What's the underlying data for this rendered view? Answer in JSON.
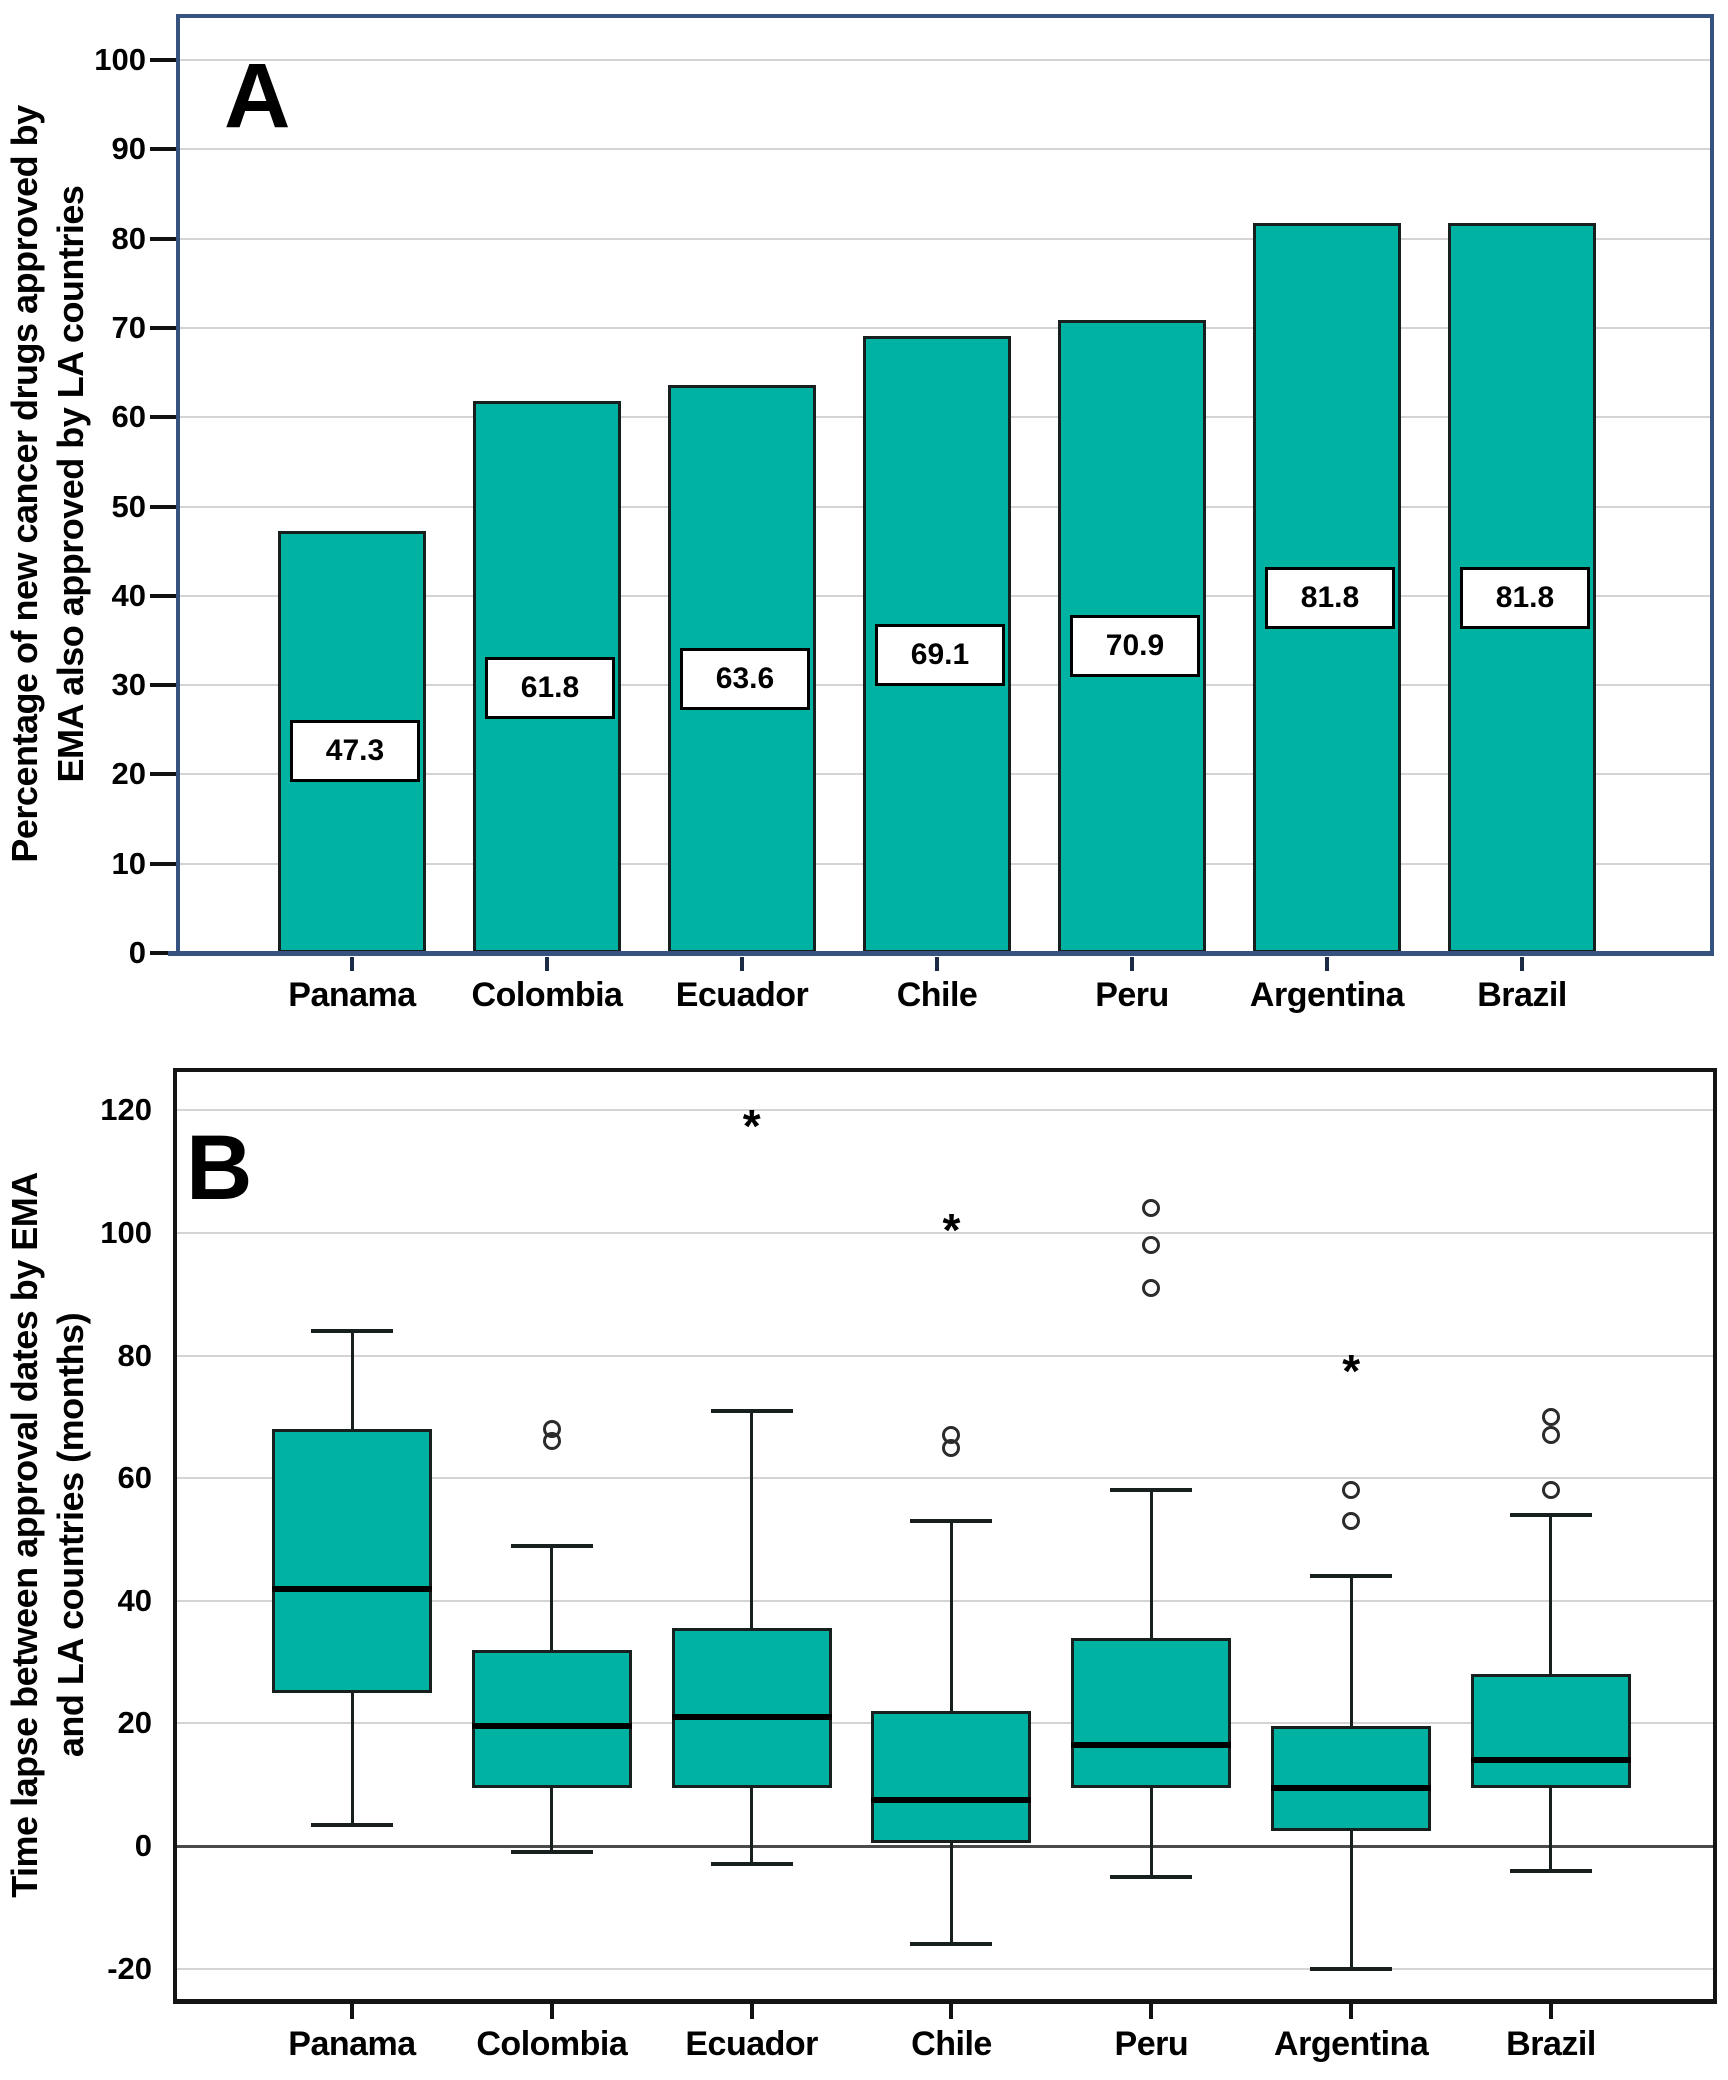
{
  "colors": {
    "teal": "#00b2a2",
    "bar_stroke": "#17201f",
    "panel_a_border": "#35537e",
    "panel_b_border": "#141414",
    "grid": "#d4d4d4",
    "zero_line": "#4a4a4a",
    "tick": "#111111",
    "median": "#000000",
    "outlier_stroke": "#2b2b2b"
  },
  "countries": [
    "Panama",
    "Colombia",
    "Ecuador",
    "Chile",
    "Peru",
    "Argentina",
    "Brazil"
  ],
  "panel_a": {
    "letter": "A",
    "ylabel_line1": "Percentage of new cancer drugs approved by",
    "ylabel_line2": "EMA also approved by LA countries",
    "yticks": [
      0,
      10,
      20,
      30,
      40,
      50,
      60,
      70,
      80,
      90,
      100
    ]
  },
  "panel_b": {
    "letter": "B",
    "ylabel_line1": "Time lapse between approval dates by EMA",
    "ylabel_line2": "and LA countries (months)",
    "yticks": [
      -20,
      0,
      20,
      40,
      60,
      80,
      100,
      120
    ]
  },
  "chart_data": [
    {
      "type": "bar",
      "panel": "A",
      "title": "A",
      "ylabel": "Percentage of new cancer drugs approved by EMA also approved by LA countries",
      "xlabel": "",
      "categories": [
        "Panama",
        "Colombia",
        "Ecuador",
        "Chile",
        "Peru",
        "Argentina",
        "Brazil"
      ],
      "values": [
        47.3,
        61.8,
        63.6,
        69.1,
        70.9,
        81.8,
        81.8
      ],
      "bar_labels": [
        "47.3",
        "61.8",
        "63.6",
        "69.1",
        "70.9",
        "81.8",
        "81.8"
      ],
      "label_center_y": [
        23,
        30,
        31,
        33.7,
        34.7,
        40.1,
        40.1
      ],
      "ylim": [
        0,
        105.2
      ],
      "yticks": [
        0,
        10,
        20,
        30,
        40,
        50,
        60,
        70,
        80,
        90,
        100
      ],
      "grid": true,
      "legend": "none"
    },
    {
      "type": "box",
      "panel": "B",
      "title": "B",
      "ylabel": "Time lapse between approval dates by EMA and LA countries (months)",
      "xlabel": "",
      "categories": [
        "Panama",
        "Colombia",
        "Ecuador",
        "Chile",
        "Peru",
        "Argentina",
        "Brazil"
      ],
      "ylim": [
        -25.6,
        126.9
      ],
      "yticks": [
        -20,
        0,
        20,
        40,
        60,
        80,
        100,
        120
      ],
      "grid": true,
      "series": [
        {
          "name": "Panama",
          "whisker_low": 3.5,
          "q1": 25,
          "median": 42,
          "q3": 68,
          "whisker_high": 84,
          "outliers_circle": [],
          "outliers_star": []
        },
        {
          "name": "Colombia",
          "whisker_low": -1,
          "q1": 9.5,
          "median": 19.5,
          "q3": 32,
          "whisker_high": 49,
          "outliers_circle": [
            66,
            68
          ],
          "outliers_star": []
        },
        {
          "name": "Ecuador",
          "whisker_low": -3,
          "q1": 9.5,
          "median": 21,
          "q3": 35.5,
          "whisker_high": 71,
          "outliers_circle": [],
          "outliers_star": [
            119
          ]
        },
        {
          "name": "Chile",
          "whisker_low": -16,
          "q1": 0.5,
          "median": 7.5,
          "q3": 22,
          "whisker_high": 53,
          "outliers_circle": [
            65,
            67
          ],
          "outliers_star": [
            102
          ]
        },
        {
          "name": "Peru",
          "whisker_low": -5,
          "q1": 9.5,
          "median": 16.5,
          "q3": 34,
          "whisker_high": 58,
          "outliers_circle": [
            91,
            98,
            104
          ],
          "outliers_star": []
        },
        {
          "name": "Argentina",
          "whisker_low": -20,
          "q1": 2.5,
          "median": 9.5,
          "q3": 19.5,
          "whisker_high": 44,
          "outliers_circle": [
            53,
            58
          ],
          "outliers_star": [
            79
          ]
        },
        {
          "name": "Brazil",
          "whisker_low": -4,
          "q1": 9.5,
          "median": 14,
          "q3": 28,
          "whisker_high": 54,
          "outliers_circle": [
            58,
            67,
            70
          ],
          "outliers_star": []
        }
      ]
    }
  ]
}
